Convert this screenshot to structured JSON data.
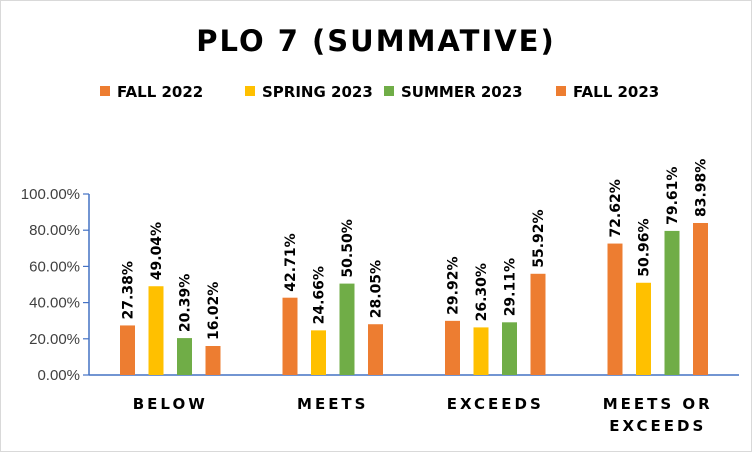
{
  "chart_data": {
    "type": "bar",
    "title": "PLO 7 (SUMMATIVE)",
    "categories": [
      [
        "BELOW"
      ],
      [
        "MEETS"
      ],
      [
        "EXCEEDS"
      ],
      [
        "MEETS OR",
        "EXCEEDS"
      ]
    ],
    "series": [
      {
        "name": "FALL 2022",
        "color": "#ED7D31",
        "values": [
          27.38,
          42.71,
          29.92,
          72.62
        ],
        "labels": [
          "27.38%",
          "42.71%",
          "29.92%",
          "72.62%"
        ]
      },
      {
        "name": "SPRING 2023",
        "color": "#FFC000",
        "values": [
          49.04,
          24.66,
          26.3,
          50.96
        ],
        "labels": [
          "49.04%",
          "24.66%",
          "26.30%",
          "50.96%"
        ]
      },
      {
        "name": "SUMMER 2023",
        "color": "#70AD47",
        "values": [
          20.39,
          50.5,
          29.11,
          79.61
        ],
        "labels": [
          "20.39%",
          "50.50%",
          "29.11%",
          "79.61%"
        ]
      },
      {
        "name": "FALL 2023",
        "color": "#ED7D31",
        "values": [
          16.02,
          28.05,
          55.92,
          83.98
        ],
        "labels": [
          "16.02%",
          "28.05%",
          "55.92%",
          "83.98%"
        ]
      }
    ],
    "ylim": [
      0,
      100
    ],
    "yticks": [
      0,
      20,
      40,
      60,
      80,
      100
    ],
    "ytick_labels": [
      "0.00%",
      "20.00%",
      "40.00%",
      "60.00%",
      "80.00%",
      "100.00%"
    ],
    "legend_position": "top",
    "grid": false,
    "axis_color": "#4472C4"
  }
}
